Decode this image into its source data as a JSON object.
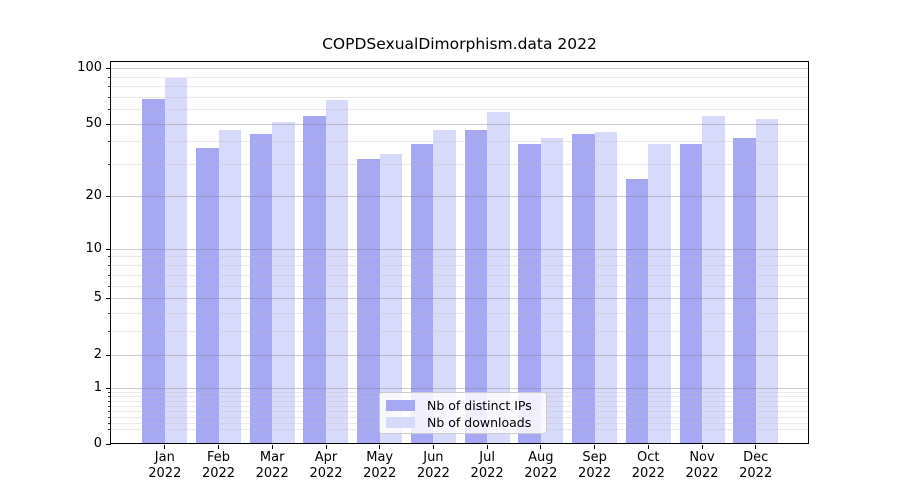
{
  "chart_data": {
    "type": "bar",
    "title": "COPDSexualDimorphism.data 2022",
    "categories": [
      "Jan",
      "Feb",
      "Mar",
      "Apr",
      "May",
      "Jun",
      "Jul",
      "Aug",
      "Sep",
      "Oct",
      "Nov",
      "Dec"
    ],
    "x_year_label": "2022",
    "series": [
      {
        "name": "Nb of distinct IPs",
        "color": "#a6a8f4",
        "values": [
          68,
          37,
          44,
          55,
          32,
          39,
          46,
          39,
          44,
          25,
          39,
          42
        ]
      },
      {
        "name": "Nb of downloads",
        "color": "#d8dafb",
        "values": [
          88,
          46,
          51,
          67,
          34,
          46,
          58,
          42,
          45,
          39,
          55,
          53
        ]
      }
    ],
    "yscale": "log1p",
    "ylim": [
      0,
      110
    ],
    "yticks": [
      0,
      1,
      2,
      5,
      10,
      20,
      50,
      100
    ],
    "minor_yticks": [
      0.2,
      0.3,
      0.4,
      0.5,
      0.6,
      0.7,
      0.8,
      0.9,
      3,
      4,
      6,
      7,
      8,
      9,
      30,
      40,
      60,
      70,
      80,
      90
    ],
    "grid": "horizontal",
    "legend_position": "lower center"
  }
}
